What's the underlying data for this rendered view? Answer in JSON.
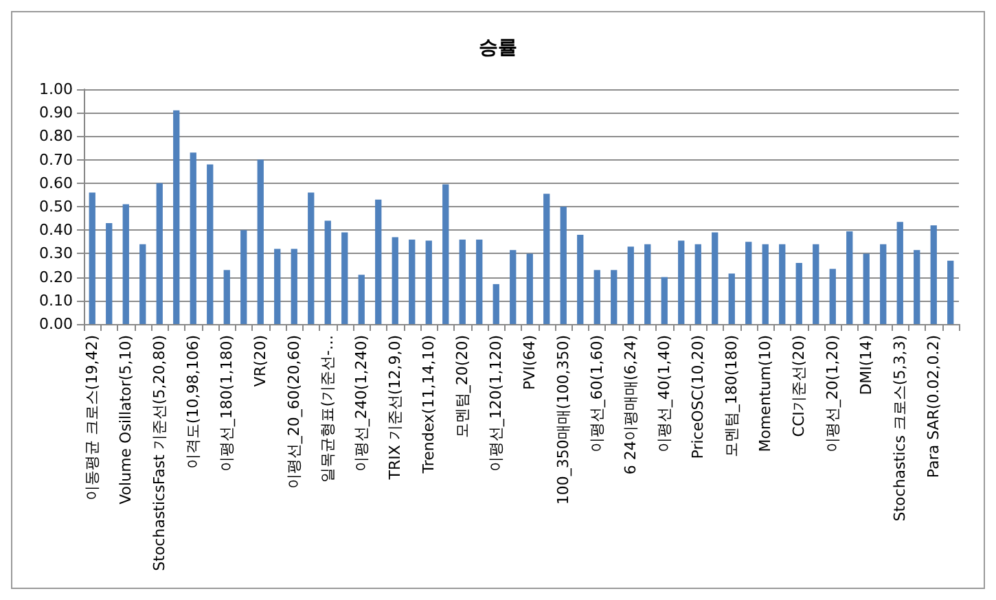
{
  "chart_data": {
    "type": "bar",
    "title": "승률",
    "categories": [
      "이동평균 크로스(19,42)",
      null,
      "Volume Osillator(5,10)",
      null,
      "StochasticsFast 기준선(5,20,80)",
      null,
      "이격도(10,98,106)",
      null,
      "이평선_180(1,180)",
      null,
      "VR(20)",
      null,
      "이평선_20_60(20,60)",
      null,
      "일목균형표(기준선-…",
      null,
      "이평선_240(1,240)",
      null,
      "TRIX 기준선(12,9,0)",
      null,
      "Trendex(11,14,10)",
      null,
      "모멘텀_20(20)",
      null,
      "이평선_120(1,120)",
      null,
      "PVI(64)",
      null,
      "100_350매매(100,350)",
      null,
      "이평선_60(1,60)",
      null,
      "6 24이평매매(6,24)",
      null,
      "이평선_40(1,40)",
      null,
      "PriceOSC(10,20)",
      null,
      "모멘텀_180(180)",
      null,
      "Momentum(10)",
      null,
      "CCI기준선(20)",
      null,
      "이평선_20(1,20)",
      null,
      "DMI(14)",
      null,
      "Stochastics 크로스(5,3,3)",
      null,
      "Para SAR(0.02,0.2)",
      null
    ],
    "values": [
      0.56,
      0.43,
      0.51,
      0.34,
      0.6,
      0.91,
      0.73,
      0.68,
      0.23,
      0.4,
      0.7,
      0.32,
      0.32,
      0.56,
      0.44,
      0.39,
      0.21,
      0.53,
      0.37,
      0.36,
      0.355,
      0.595,
      0.36,
      0.36,
      0.17,
      0.315,
      0.3,
      0.555,
      0.5,
      0.38,
      0.23,
      0.23,
      0.33,
      0.34,
      0.2,
      0.355,
      0.34,
      0.39,
      0.215,
      0.35,
      0.34,
      0.34,
      0.26,
      0.34,
      0.235,
      0.395,
      0.3,
      0.34,
      0.435,
      0.315,
      0.42,
      0.27
    ],
    "color": "#4f81bd",
    "ylim": [
      0,
      1
    ],
    "yticks": [
      {
        "value": 0,
        "label": "0.00"
      },
      {
        "value": 0.1,
        "label": "0.10"
      },
      {
        "value": 0.2,
        "label": "0.20"
      },
      {
        "value": 0.3,
        "label": "0.30"
      },
      {
        "value": 0.4,
        "label": "0.40"
      },
      {
        "value": 0.5,
        "label": "0.50"
      },
      {
        "value": 0.6,
        "label": "0.60"
      },
      {
        "value": 0.7,
        "label": "0.70"
      },
      {
        "value": 0.8,
        "label": "0.80"
      },
      {
        "value": 0.9,
        "label": "0.90"
      },
      {
        "value": 1,
        "label": "1.00"
      }
    ],
    "grid": "y"
  }
}
